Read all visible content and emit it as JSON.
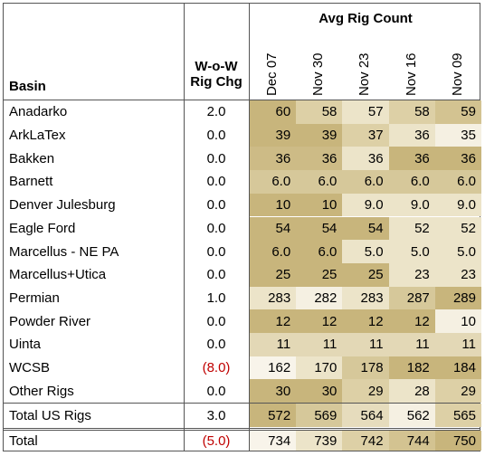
{
  "header": {
    "group_title": "Avg Rig Count",
    "basin": "Basin",
    "wow": "W-o-W\nRig Chg",
    "dates": [
      "Dec 07",
      "Nov 30",
      "Nov 23",
      "Nov 16",
      "Nov 09"
    ]
  },
  "negative_color": "#c00000",
  "rows": [
    {
      "basin": "Anadarko",
      "wow": "2.0",
      "counts": [
        "60",
        "58",
        "57",
        "58",
        "59"
      ],
      "shades": [
        "#c8b57c",
        "#ddd0a6",
        "#ece4c9",
        "#ddd0a6",
        "#d3c391"
      ]
    },
    {
      "basin": "ArkLaTex",
      "wow": "0.0",
      "counts": [
        "39",
        "39",
        "37",
        "36",
        "35"
      ],
      "shades": [
        "#c8b57c",
        "#c8b57c",
        "#ddd0a6",
        "#ece4c9",
        "#f5f0e2"
      ]
    },
    {
      "basin": "Bakken",
      "wow": "0.0",
      "counts": [
        "36",
        "36",
        "36",
        "36",
        "36"
      ],
      "shades": [
        "#cdbb86",
        "#cdbb86",
        "#ece4c9",
        "#c8b57c",
        "#c8b57c"
      ]
    },
    {
      "basin": "Barnett",
      "wow": "0.0",
      "counts": [
        "6.0",
        "6.0",
        "6.0",
        "6.0",
        "6.0"
      ],
      "shades": [
        "#d6c89a",
        "#d6c89a",
        "#d6c89a",
        "#d6c89a",
        "#d6c89a"
      ]
    },
    {
      "basin": "Denver Julesburg",
      "wow": "0.0",
      "counts": [
        "10",
        "10",
        "9.0",
        "9.0",
        "9.0"
      ],
      "shades": [
        "#c8b57c",
        "#c8b57c",
        "#ece4c9",
        "#ece4c9",
        "#ece4c9"
      ]
    },
    {
      "basin": "Eagle Ford",
      "wow": "0.0",
      "counts": [
        "54",
        "54",
        "54",
        "52",
        "52"
      ],
      "shades": [
        "#c8b57c",
        "#c8b57c",
        "#c8b57c",
        "#ece4c9",
        "#ece4c9"
      ]
    },
    {
      "basin": "Marcellus - NE PA",
      "wow": "0.0",
      "counts": [
        "6.0",
        "6.0",
        "5.0",
        "5.0",
        "5.0"
      ],
      "shades": [
        "#c8b57c",
        "#c8b57c",
        "#ece4c9",
        "#ece4c9",
        "#ece4c9"
      ]
    },
    {
      "basin": "Marcellus+Utica",
      "wow": "0.0",
      "counts": [
        "25",
        "25",
        "25",
        "23",
        "23"
      ],
      "shades": [
        "#c8b57c",
        "#c8b57c",
        "#c8b57c",
        "#ece4c9",
        "#ece4c9"
      ]
    },
    {
      "basin": "Permian",
      "wow": "1.0",
      "counts": [
        "283",
        "282",
        "283",
        "287",
        "289"
      ],
      "shades": [
        "#ece4c9",
        "#f5f0e2",
        "#ece4c9",
        "#d6c89a",
        "#c8b57c"
      ]
    },
    {
      "basin": "Powder River",
      "wow": "0.0",
      "counts": [
        "12",
        "12",
        "12",
        "12",
        "10"
      ],
      "shades": [
        "#c8b57c",
        "#c8b57c",
        "#c8b57c",
        "#c8b57c",
        "#f5f0e2"
      ]
    },
    {
      "basin": "Uinta",
      "wow": "0.0",
      "counts": [
        "11",
        "11",
        "11",
        "11",
        "11"
      ],
      "shades": [
        "#e3d8b6",
        "#e3d8b6",
        "#e3d8b6",
        "#e3d8b6",
        "#e3d8b6"
      ]
    },
    {
      "basin": "WCSB",
      "wow": "(8.0)",
      "counts": [
        "162",
        "170",
        "178",
        "182",
        "184"
      ],
      "shades": [
        "#f8f4ea",
        "#ece4c9",
        "#d6c89a",
        "#c8b57c",
        "#c8b57c"
      ]
    },
    {
      "basin": "Other Rigs",
      "wow": "0.0",
      "counts": [
        "30",
        "30",
        "29",
        "28",
        "29"
      ],
      "shades": [
        "#c8b57c",
        "#c8b57c",
        "#ddd0a6",
        "#ece4c9",
        "#ddd0a6"
      ]
    }
  ],
  "totals": [
    {
      "basin": "Total US Rigs",
      "wow": "3.0",
      "counts": [
        "572",
        "569",
        "564",
        "562",
        "565"
      ],
      "shades": [
        "#c8b57c",
        "#d6c89a",
        "#e6dcbd",
        "#f5f0e2",
        "#ddd0a6"
      ]
    },
    {
      "basin": "Total",
      "wow": "(5.0)",
      "counts": [
        "734",
        "739",
        "742",
        "744",
        "750"
      ],
      "shades": [
        "#f8f4ea",
        "#ece4c9",
        "#ddd0a6",
        "#d3c391",
        "#c8b57c"
      ]
    }
  ]
}
